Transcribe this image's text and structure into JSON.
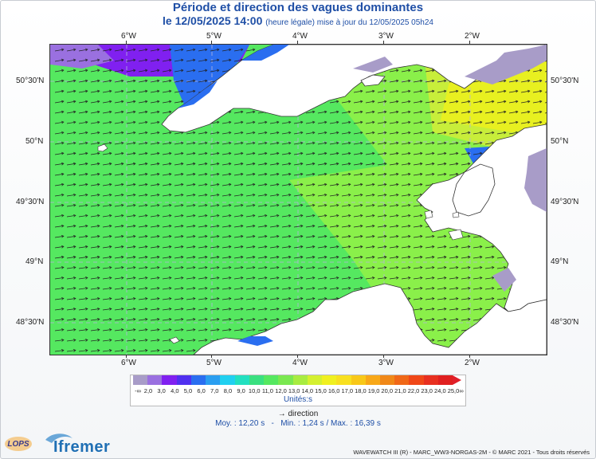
{
  "header": {
    "title": "Période et direction des vagues dominantes",
    "datetime": "le 12/05/2025 14:00",
    "update_note": "(heure légale) mise à jour du 12/05/2025 05h24"
  },
  "map": {
    "lon_labels": [
      "6°W",
      "5°W",
      "4°W",
      "3°W",
      "2°W"
    ],
    "lat_labels": [
      "50°30'N",
      "50°N",
      "49°30'N",
      "49°N",
      "48°30'N"
    ],
    "colors": {
      "sea_main": "#55e860",
      "sea_light": "#8af04a",
      "sea_yellow": "#e8f020",
      "sea_blue": "#2a6ef0",
      "sea_purple": "#8020f0",
      "land": "#ffffff",
      "dry_gray": "#a89cc8",
      "arrow": "#222222"
    }
  },
  "legend": {
    "colorbar_labels": [
      "2,0",
      "3,0",
      "4,0",
      "5,0",
      "6,0",
      "7,0",
      "8,0",
      "9,0",
      "10,0",
      "11,0",
      "12,0",
      "13,0",
      "14,0",
      "15,0",
      "16,0",
      "17,0",
      "18,0",
      "19,0",
      "20,0",
      "21,0",
      "22,0",
      "23,0",
      "24,0",
      "25,0"
    ],
    "left_symbol": "-∞",
    "right_symbol": "∞",
    "colors": [
      "#a89cc8",
      "#9a70e0",
      "#8020f0",
      "#5030f0",
      "#2a6ef0",
      "#2a9ef0",
      "#20d0f0",
      "#22e0c0",
      "#3ae080",
      "#55e860",
      "#7ae850",
      "#a8ec40",
      "#d4f030",
      "#f0f020",
      "#f8e020",
      "#f8c818",
      "#f8a818",
      "#f08818",
      "#f06818",
      "#f04818",
      "#e83020",
      "#e02020"
    ],
    "units": "Unités:s",
    "direction_label": "direction",
    "direction_arrow": "→"
  },
  "stats": {
    "mean": "Moy. : 12,20 s",
    "min": "Min. : 1,24 s",
    "max": "Max. : 16,39 s"
  },
  "footer": {
    "credit": "WAVEWATCH III (R) - MARC_WW3-NORGAS-2M - © MARC 2021 - Tous droits réservés",
    "logo_lops": "LOPS",
    "logo_ifremer": "Ifremer"
  }
}
